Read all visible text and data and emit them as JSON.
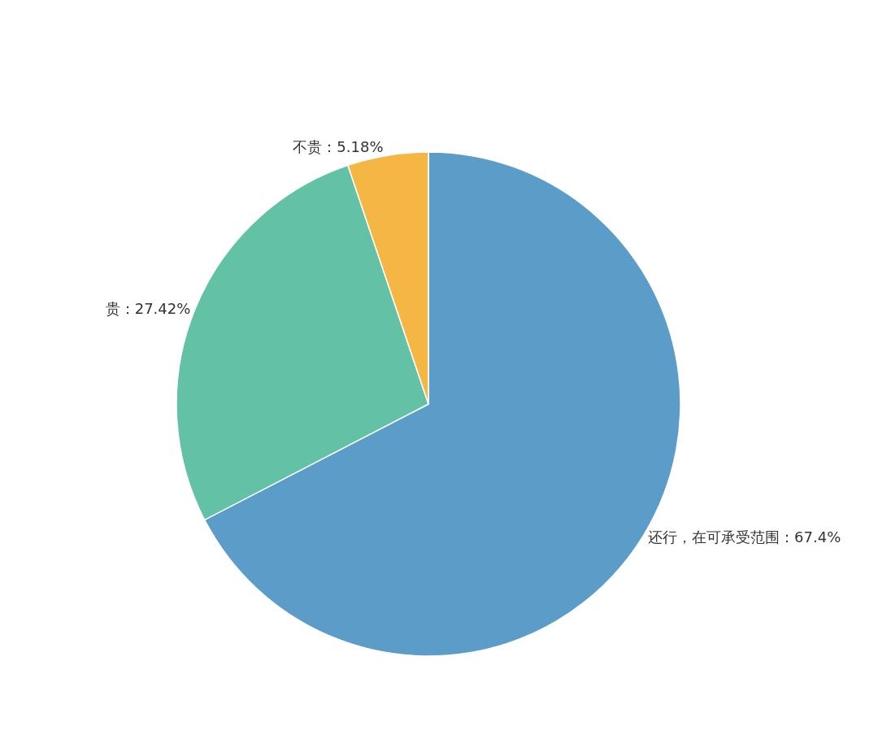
{
  "chart_data": {
    "type": "pie",
    "categories": [
      "还行，在可承受范围：67.4%",
      "贵：27.42%",
      "不贵：5.18%"
    ],
    "values": [
      67.4,
      27.42,
      5.18
    ],
    "colors": [
      "#5b9cc9",
      "#63c1a5",
      "#f4b744"
    ],
    "legend": false
  }
}
